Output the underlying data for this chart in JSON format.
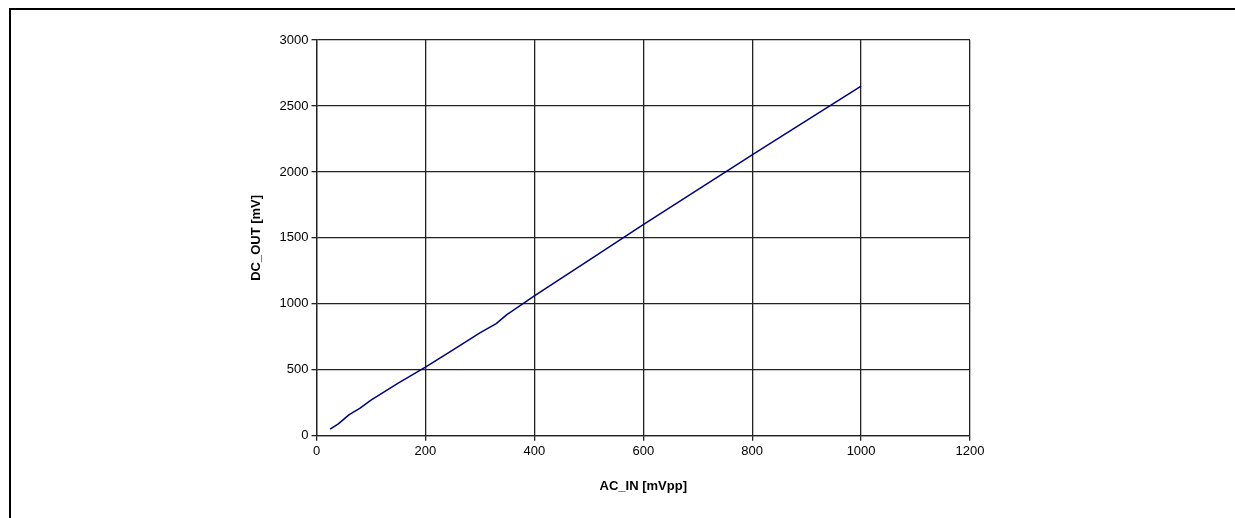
{
  "chart_data": {
    "type": "line",
    "xlabel": "AC_IN [mVpp]",
    "ylabel": "DC_OUT [mV]",
    "x": [
      25,
      40,
      60,
      80,
      100,
      150,
      200,
      250,
      300,
      330,
      350,
      400,
      600,
      800,
      1000
    ],
    "series": [
      {
        "color": "#000080",
        "values": [
          50,
          90,
          160,
          210,
          270,
          400,
          520,
          650,
          780,
          850,
          920,
          1060,
          1600,
          2130,
          2650
        ]
      }
    ],
    "xlim": [
      0,
      1200
    ],
    "xticks": [
      0,
      200,
      400,
      600,
      800,
      1000,
      1200
    ],
    "ylim": [
      0,
      3000
    ],
    "yticks": [
      0,
      500,
      1000,
      1500,
      2000,
      2500,
      3000
    ],
    "grid": true,
    "legend": false,
    "marker": "none",
    "line_style": "solid"
  }
}
